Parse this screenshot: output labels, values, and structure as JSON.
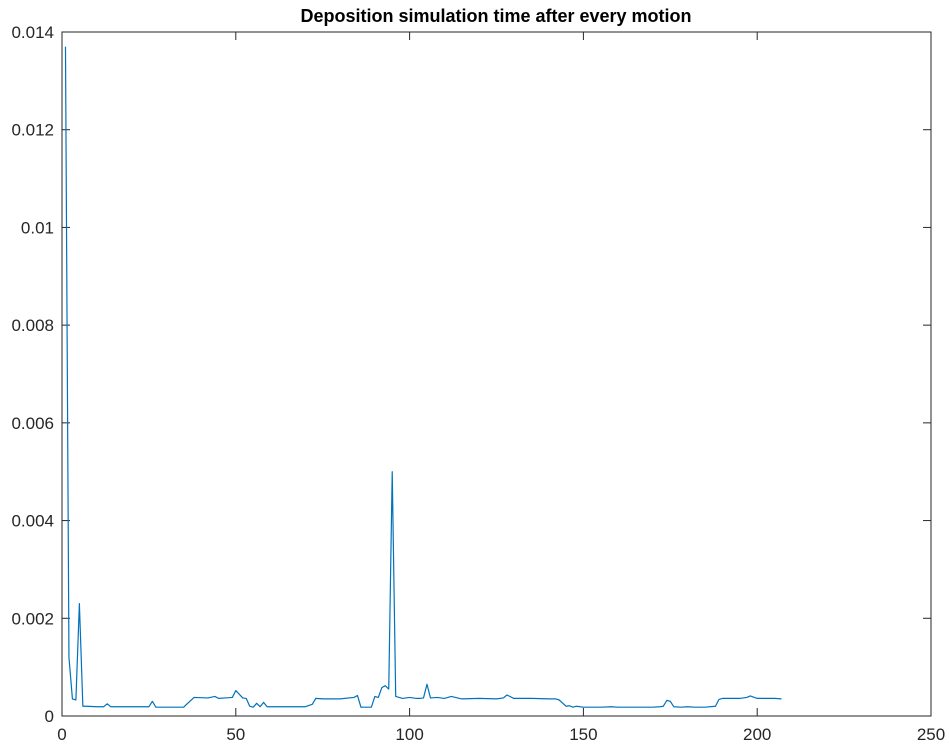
{
  "chart_data": {
    "type": "line",
    "title": "Deposition simulation time after every motion",
    "xlabel": "",
    "ylabel": "",
    "xlim": [
      0,
      250
    ],
    "ylim": [
      0,
      0.014
    ],
    "x_ticks": [
      0,
      50,
      100,
      150,
      200,
      250
    ],
    "x_tick_labels": [
      "0",
      "50",
      "100",
      "150",
      "200",
      "250"
    ],
    "y_ticks": [
      0,
      0.002,
      0.004,
      0.006,
      0.008,
      0.01,
      0.012,
      0.014
    ],
    "y_tick_labels": [
      "0",
      "0.002",
      "0.004",
      "0.006",
      "0.008",
      "0.01",
      "0.012",
      "0.014"
    ],
    "grid": false,
    "box": true,
    "series": [
      {
        "color": "#0072BD",
        "x": [
          1,
          2,
          3,
          4,
          5,
          6,
          7,
          10,
          12,
          13,
          14,
          16,
          20,
          25,
          26,
          27,
          30,
          35,
          36,
          38,
          42,
          44,
          45,
          47,
          49,
          50,
          52,
          53,
          54,
          55,
          56,
          57,
          58,
          59,
          60,
          65,
          70,
          72,
          73,
          75,
          80,
          84,
          85,
          86,
          88,
          89,
          90,
          91,
          92,
          93,
          94,
          95,
          96,
          98,
          100,
          102,
          103,
          104,
          105,
          106,
          108,
          110,
          112,
          115,
          120,
          125,
          127,
          128,
          130,
          135,
          140,
          142,
          143,
          145,
          146,
          147,
          148,
          150,
          155,
          158,
          160,
          165,
          170,
          172,
          173,
          174,
          175,
          176,
          178,
          180,
          182,
          185,
          188,
          189,
          190,
          195,
          197,
          198,
          200,
          205,
          207
        ],
        "y": [
          0.0137,
          0.0012,
          0.00035,
          0.00033,
          0.0023,
          0.0002,
          0.0002,
          0.00019,
          0.00019,
          0.00025,
          0.00019,
          0.00019,
          0.00019,
          0.00019,
          0.0003,
          0.00018,
          0.00018,
          0.00018,
          0.00025,
          0.00038,
          0.00037,
          0.0004,
          0.00036,
          0.00037,
          0.00038,
          0.00052,
          0.00037,
          0.00036,
          0.0002,
          0.00018,
          0.00026,
          0.00019,
          0.00028,
          0.00019,
          0.00019,
          0.00019,
          0.00019,
          0.00024,
          0.00036,
          0.00035,
          0.00035,
          0.00038,
          0.00042,
          0.00018,
          0.00018,
          0.00018,
          0.0004,
          0.00038,
          0.00058,
          0.00062,
          0.00055,
          0.005,
          0.0004,
          0.00036,
          0.00038,
          0.00036,
          0.00036,
          0.00037,
          0.00065,
          0.00037,
          0.00038,
          0.00036,
          0.0004,
          0.00035,
          0.00036,
          0.00035,
          0.00037,
          0.00043,
          0.00036,
          0.00036,
          0.00035,
          0.00035,
          0.00033,
          0.0002,
          0.00021,
          0.00018,
          0.0002,
          0.00018,
          0.00018,
          0.00019,
          0.00018,
          0.00018,
          0.00018,
          0.00019,
          0.0002,
          0.00032,
          0.0003,
          0.00019,
          0.00018,
          0.00019,
          0.00018,
          0.00018,
          0.0002,
          0.00034,
          0.00036,
          0.00036,
          0.00038,
          0.00041,
          0.00036,
          0.00036,
          0.00035
        ]
      }
    ]
  }
}
